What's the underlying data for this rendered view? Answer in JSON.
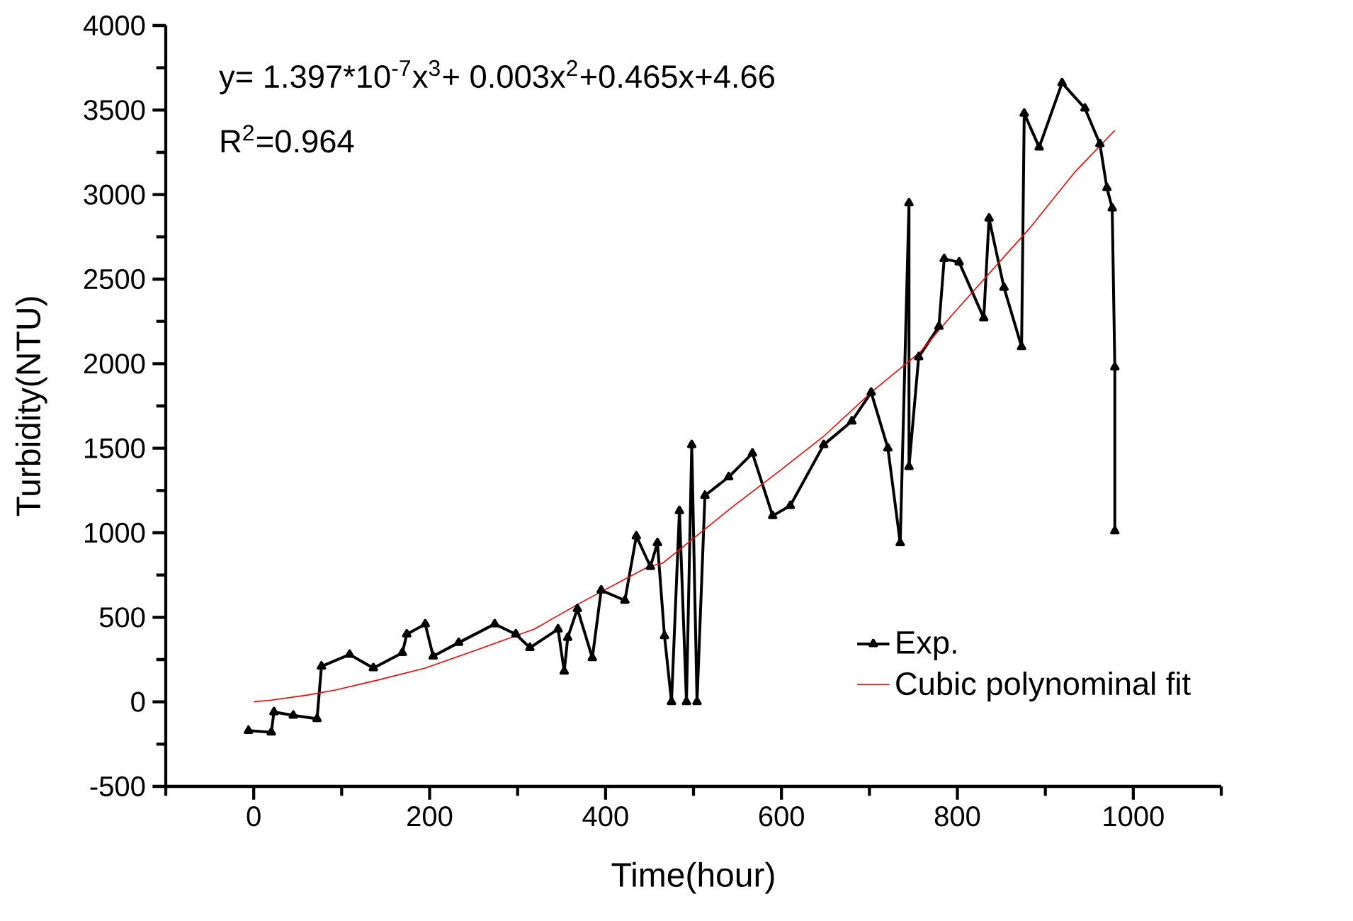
{
  "chart_data": {
    "type": "line",
    "xlabel": "Time(hour)",
    "ylabel": "Turbidity(NTU)",
    "annotations": [
      "y= 1.397*10$^{-7}$x$^{3}$+ 0.003x$^{2}$+0.465x+4.66",
      "R$^{2}$=0.964"
    ],
    "xlim": [
      -100,
      1100
    ],
    "ylim": [
      -500,
      4000
    ],
    "xticks": [
      {
        "value": -100,
        "label": null
      },
      0,
      {
        "value": 100,
        "label": null
      },
      200,
      {
        "value": 300,
        "label": null
      },
      400,
      {
        "value": 500,
        "label": null
      },
      600,
      {
        "value": 700,
        "label": null
      },
      800,
      {
        "value": 900,
        "label": null
      },
      1000,
      {
        "value": 1100,
        "label": null
      }
    ],
    "yticks": [
      -500,
      {
        "value": -250,
        "label": null
      },
      0,
      {
        "value": 250,
        "label": null
      },
      500,
      {
        "value": 750,
        "label": null
      },
      1000,
      {
        "value": 1250,
        "label": null
      },
      1500,
      {
        "value": 1750,
        "label": null
      },
      2000,
      {
        "value": 2250,
        "label": null
      },
      2500,
      {
        "value": 2750,
        "label": null
      },
      3000,
      {
        "value": 3250,
        "label": null
      },
      3500,
      {
        "value": 3750,
        "label": null
      },
      4000
    ],
    "grid": false,
    "legend": "bottom right",
    "series": [
      {
        "name": "Exp.",
        "color": "#000000",
        "marker": "triangle",
        "x": [
          -6,
          20,
          23,
          45,
          72,
          77,
          109,
          136,
          169,
          174,
          195,
          204,
          233,
          274,
          298,
          314,
          346,
          353,
          357,
          368,
          385,
          395,
          422,
          435,
          451,
          459,
          467,
          475,
          484,
          492,
          498,
          504,
          513,
          540,
          567,
          590,
          610,
          648,
          680,
          702,
          721,
          735,
          745,
          745,
          756,
          779,
          785,
          802,
          830,
          836,
          853,
          873,
          876,
          893,
          919,
          945,
          962,
          970,
          976,
          979,
          979
        ],
        "values": [
          -170,
          -180,
          -60,
          -80,
          -100,
          210,
          280,
          200,
          290,
          400,
          460,
          270,
          350,
          460,
          400,
          320,
          430,
          180,
          380,
          550,
          260,
          660,
          600,
          980,
          800,
          940,
          390,
          0,
          1130,
          0,
          1520,
          0,
          1220,
          1330,
          1470,
          1100,
          1160,
          1520,
          1660,
          1830,
          1500,
          940,
          2950,
          1390,
          2040,
          2220,
          2620,
          2600,
          2270,
          2860,
          2450,
          2100,
          3480,
          3280,
          3660,
          3510,
          3300,
          3040,
          2920,
          1980,
          1010
        ]
      },
      {
        "name": "Cubic polynominal fit",
        "color": "#ff0000",
        "marker": "none",
        "x": [
          0,
          20,
          61,
          93,
          142,
          195,
          255,
          319,
          373,
          449,
          465,
          546,
          599,
          648,
          702,
          758,
          796,
          882,
          933,
          979
        ],
        "values": [
          0,
          10,
          40,
          70,
          130,
          200,
          310,
          430,
          590,
          800,
          820,
          1160,
          1370,
          1570,
          1830,
          2070,
          2300,
          2800,
          3130,
          3380
        ]
      }
    ]
  }
}
